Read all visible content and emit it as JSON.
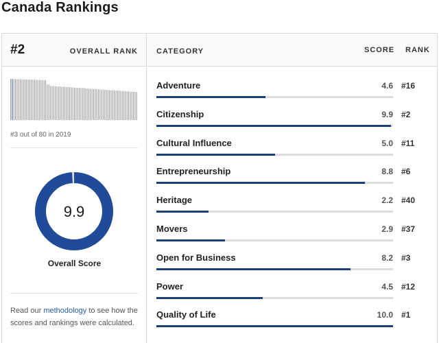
{
  "page": {
    "title": "Canada Rankings"
  },
  "overall": {
    "rank": "#2",
    "rank_label": "OVERALL RANK",
    "history_text": "#3 out of 80 in 2019",
    "score": "9.9",
    "score_value": 9.9,
    "score_max": 10,
    "score_caption": "Overall Score"
  },
  "note": {
    "before": "Read our ",
    "link": "methodology",
    "after": " to see how the scores and rankings were calculated."
  },
  "table": {
    "headers": {
      "category": "CATEGORY",
      "score": "SCORE",
      "rank": "RANK"
    },
    "max_score": 10,
    "rows": [
      {
        "category": "Adventure",
        "score": "4.6",
        "value": 4.6,
        "rank": "#16"
      },
      {
        "category": "Citizenship",
        "score": "9.9",
        "value": 9.9,
        "rank": "#2"
      },
      {
        "category": "Cultural Influence",
        "score": "5.0",
        "value": 5.0,
        "rank": "#11"
      },
      {
        "category": "Entrepreneurship",
        "score": "8.8",
        "value": 8.8,
        "rank": "#6"
      },
      {
        "category": "Heritage",
        "score": "2.2",
        "value": 2.2,
        "rank": "#40"
      },
      {
        "category": "Movers",
        "score": "2.9",
        "value": 2.9,
        "rank": "#37"
      },
      {
        "category": "Open for Business",
        "score": "8.2",
        "value": 8.2,
        "rank": "#3"
      },
      {
        "category": "Power",
        "score": "4.5",
        "value": 4.5,
        "rank": "#12"
      },
      {
        "category": "Quality of Life",
        "score": "10.0",
        "value": 10.0,
        "rank": "#1"
      }
    ]
  },
  "colors": {
    "accent": "#1c3f78",
    "donut": "#1f4b99",
    "track": "#dcdcdc",
    "spark": "#9a9a9a",
    "spark_highlight": "#2b5fa6",
    "link": "#2b5fa6"
  }
}
